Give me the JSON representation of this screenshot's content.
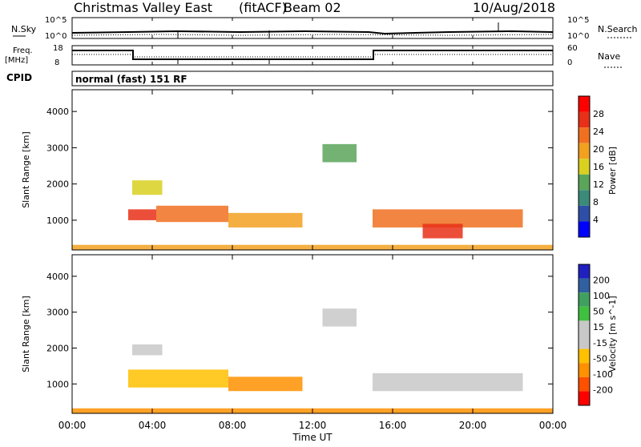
{
  "header": {
    "station": "Christmas Valley East",
    "mode": "(fitACF)",
    "beam": "Beam 02",
    "date": "10/Aug/2018"
  },
  "summary": {
    "nsky_label": "N.Sky",
    "nsky_ticks": [
      "10^5",
      "10^0"
    ],
    "nsearch_label": "N.Search",
    "nsearch_ticks": [
      "10^5",
      "10^0"
    ],
    "freq_label_1": "Freq.",
    "freq_label_2": "[MHz]",
    "freq_ticks": [
      "18",
      "8"
    ],
    "nave_label": "Nave",
    "nave_ticks": [
      "60",
      "0"
    ],
    "cpid_label": "CPID",
    "cpid_value": "normal (fast) 151 RF"
  },
  "colors": {
    "power_scale": [
      "#0000ff",
      "#2e4fa8",
      "#3c8a7a",
      "#5aa55a",
      "#d9d020",
      "#f2a020",
      "#f07020",
      "#e83018",
      "#ff0000"
    ],
    "velocity_scale": [
      "#ff0000",
      "#ff5000",
      "#ff9000",
      "#ffc000",
      "#c8c8c8",
      "#c8c8c8",
      "#40c040",
      "#40a060",
      "#3060a0",
      "#2020c0"
    ]
  },
  "chart_data": [
    {
      "type": "heatmap",
      "name": "power",
      "ylabel": "Slant Range [km]",
      "yticks": [
        "1000",
        "2000",
        "3000",
        "4000"
      ],
      "ylim": [
        180,
        4600
      ],
      "xlim": [
        0,
        24
      ],
      "colorbar_label": "Power [dB]",
      "colorbar_ticks": [
        "4",
        "8",
        "12",
        "16",
        "20",
        "24",
        "28"
      ],
      "cells": [
        {
          "t0": 2.8,
          "t1": 4.2,
          "r0": 1000,
          "r1": 1300,
          "dB": 26
        },
        {
          "t0": 4.2,
          "t1": 7.8,
          "r0": 950,
          "r1": 1400,
          "dB": 22
        },
        {
          "t0": 7.8,
          "t1": 11.5,
          "r0": 800,
          "r1": 1200,
          "dB": 20
        },
        {
          "t0": 3.0,
          "t1": 4.5,
          "r0": 1700,
          "r1": 2100,
          "dB": 16
        },
        {
          "t0": 12.5,
          "t1": 14.2,
          "r0": 2600,
          "r1": 3100,
          "dB": 12
        },
        {
          "t0": 15.0,
          "t1": 22.5,
          "r0": 800,
          "r1": 1300,
          "dB": 22
        },
        {
          "t0": 17.5,
          "t1": 19.5,
          "r0": 500,
          "r1": 900,
          "dB": 27
        },
        {
          "t0": 0.0,
          "t1": 24.0,
          "r0": 180,
          "r1": 320,
          "dB": 18
        }
      ]
    },
    {
      "type": "heatmap",
      "name": "velocity",
      "xlabel": "Time UT",
      "xticks": [
        "00:00",
        "04:00",
        "08:00",
        "12:00",
        "16:00",
        "20:00",
        "00:00"
      ],
      "ylabel": "Slant Range [km]",
      "yticks": [
        "1000",
        "2000",
        "3000",
        "4000"
      ],
      "ylim": [
        180,
        4600
      ],
      "xlim": [
        0,
        24
      ],
      "colorbar_label": "Velocity [m s^-1]",
      "colorbar_ticks": [
        "-200",
        "-100",
        "-50",
        "-15",
        "15",
        "50",
        "100",
        "200"
      ],
      "cells": [
        {
          "t0": 2.8,
          "t1": 7.8,
          "r0": 900,
          "r1": 1400,
          "v": -40
        },
        {
          "t0": 7.8,
          "t1": 11.5,
          "r0": 800,
          "r1": 1200,
          "v": -80
        },
        {
          "t0": 3.0,
          "t1": 4.5,
          "r0": 1800,
          "r1": 2100,
          "v": 0
        },
        {
          "t0": 12.5,
          "t1": 14.2,
          "r0": 2600,
          "r1": 3100,
          "v": 5
        },
        {
          "t0": 15.0,
          "t1": 22.5,
          "r0": 800,
          "r1": 1300,
          "v": 0
        },
        {
          "t0": 0.0,
          "t1": 24.0,
          "r0": 180,
          "r1": 320,
          "v": -60
        }
      ]
    }
  ]
}
